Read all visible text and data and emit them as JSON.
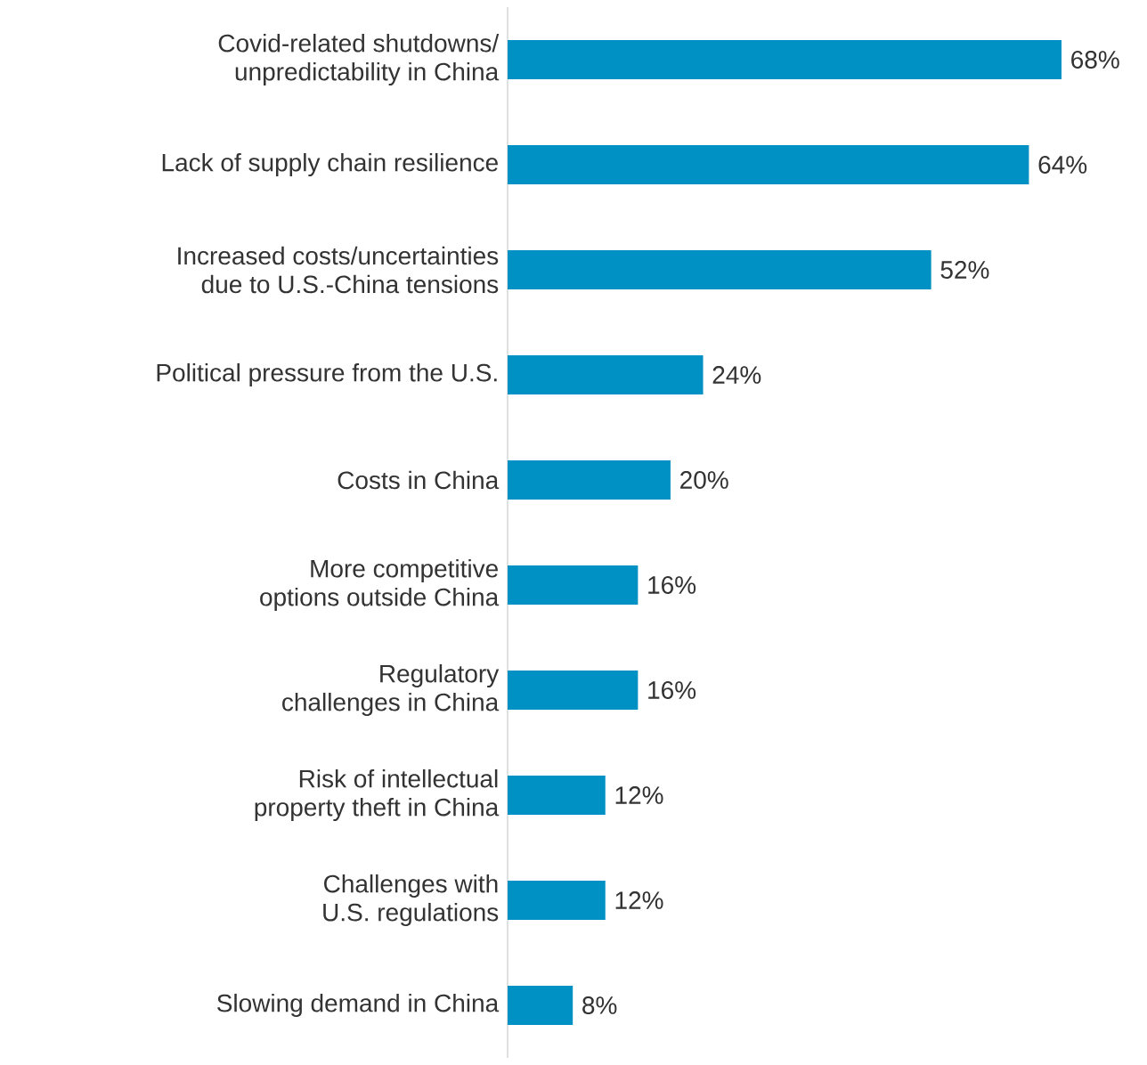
{
  "chart_data": {
    "type": "bar",
    "orientation": "horizontal",
    "color": "#0091c4",
    "categories": [
      "Covid-related shutdowns/\nunpredictability in China",
      "Lack of supply chain resilience",
      "Increased costs/uncertainties\ndue to U.S.-China tensions",
      "Political pressure from the U.S.",
      "Costs in China",
      "More competitive\noptions outside China",
      "Regulatory\nchallenges in China",
      "Risk of intellectual\nproperty theft in China",
      "Challenges with\nU.S. regulations",
      "Slowing demand in China"
    ],
    "values": [
      68,
      64,
      52,
      24,
      20,
      16,
      16,
      12,
      12,
      8
    ],
    "value_labels": [
      "68%",
      "64%",
      "52%",
      "24%",
      "20%",
      "16%",
      "16%",
      "12%",
      "12%",
      "8%"
    ]
  }
}
